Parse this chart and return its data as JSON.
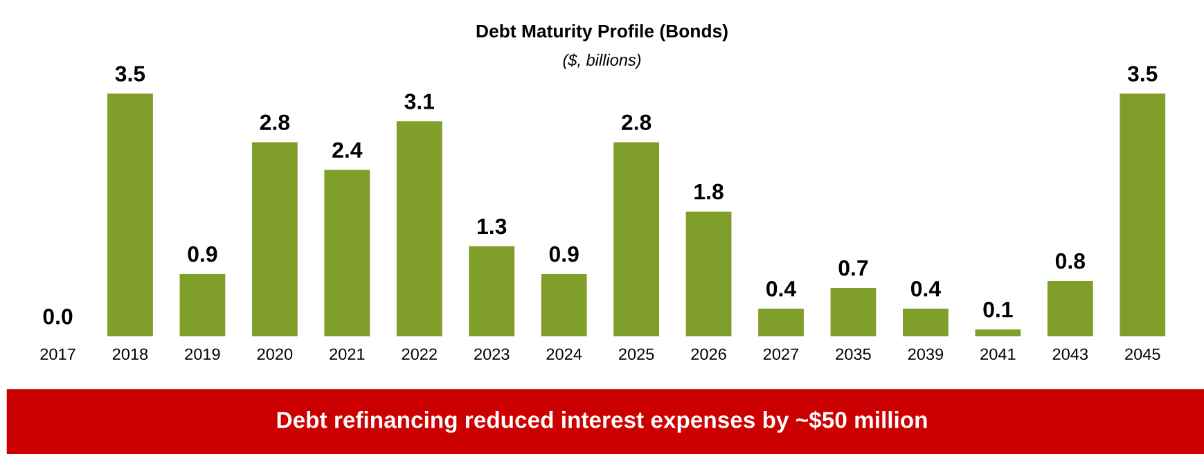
{
  "chart_data": {
    "type": "bar",
    "title": "Debt Maturity Profile (Bonds)",
    "subtitle": "($, billions)",
    "categories": [
      "2017",
      "2018",
      "2019",
      "2020",
      "2021",
      "2022",
      "2023",
      "2024",
      "2025",
      "2026",
      "2027",
      "2035",
      "2039",
      "2041",
      "2043",
      "2045"
    ],
    "values": [
      0.0,
      3.5,
      0.9,
      2.8,
      2.4,
      3.1,
      1.3,
      0.9,
      2.8,
      1.8,
      0.4,
      0.7,
      0.4,
      0.1,
      0.8,
      3.5
    ],
    "color": "#7f9f2a",
    "value_labels": [
      "0.0",
      "3.5",
      "0.9",
      "2.8",
      "2.4",
      "3.1",
      "1.3",
      "0.9",
      "2.8",
      "1.8",
      "0.4",
      "0.7",
      "0.4",
      "0.1",
      "0.8",
      "3.5"
    ],
    "grid": false,
    "legend": false,
    "annotations": [
      "Debt refinancing reduced interest expenses by ~$50 million"
    ]
  }
}
